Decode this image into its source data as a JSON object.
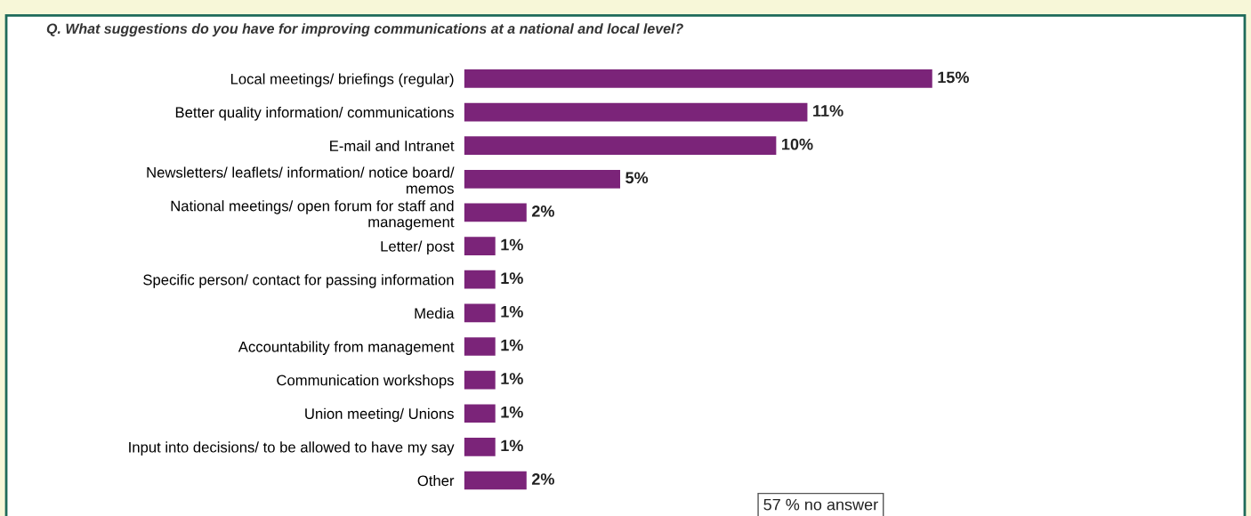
{
  "chart_data": {
    "type": "bar",
    "orientation": "horizontal",
    "title": "Q. What suggestions do you have for improving communications at a national and local level?",
    "categories": [
      "Local meetings/ briefings (regular)",
      "Better quality information/ communications",
      "E-mail and Intranet",
      "Newsletters/ leaflets/ information/ notice board/\nmemos",
      "National meetings/ open forum for staff and\nmanagement",
      "Letter/ post",
      "Specific person/ contact for passing information",
      "Media",
      "Accountability from management",
      "Communication workshops",
      "Union meeting/ Unions",
      "Input into decisions/ to be allowed to have my say",
      "Other"
    ],
    "values": [
      15,
      11,
      10,
      5,
      2,
      1,
      1,
      1,
      1,
      1,
      1,
      1,
      2
    ],
    "value_labels": [
      "15%",
      "11%",
      "10%",
      "5%",
      "2%",
      "1%",
      "1%",
      "1%",
      "1%",
      "1%",
      "1%",
      "1%",
      "2%"
    ],
    "color": "#7b2479",
    "annotations": [
      "57 % no answer"
    ]
  }
}
